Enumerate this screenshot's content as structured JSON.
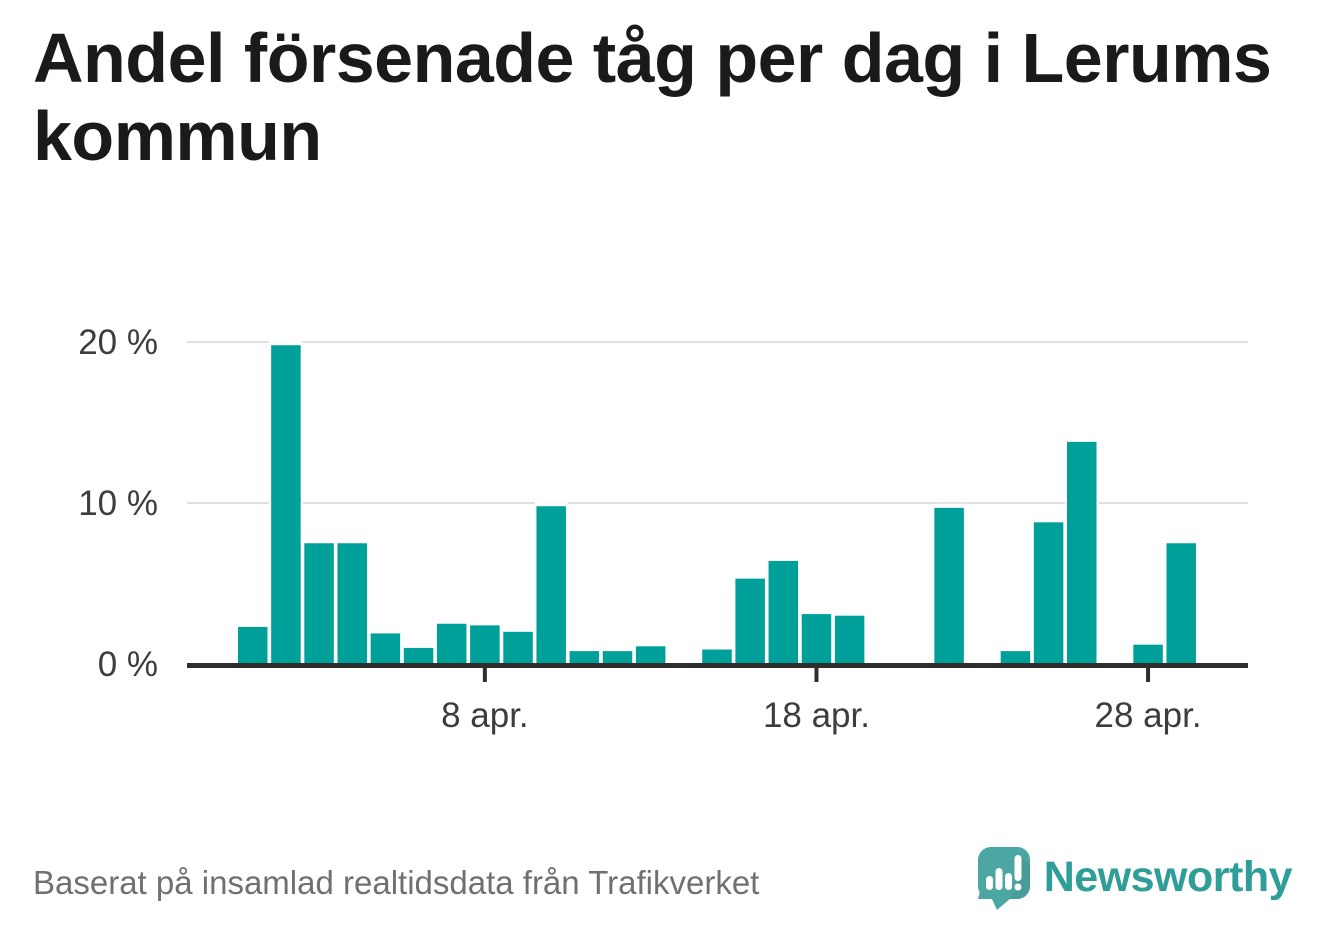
{
  "page": {
    "title": "Andel försenade tåg per dag i Lerums kommun"
  },
  "footer": {
    "source_text": "Baserat på insamlad realtidsdata från Trafikverket",
    "brand_name": "Newsworthy"
  },
  "colors": {
    "background": "#ffffff",
    "bar": "#00a09a",
    "grid": "#e0e0e0",
    "axis": "#2e2e2e",
    "axis_label": "#3d3d3d",
    "title": "#1a1a1a",
    "footer_text": "#707070",
    "brand_teal": "#2f9d98",
    "logo_bubble": "#4ca6a2",
    "logo_marks": "#ffffff"
  },
  "chart_data": {
    "type": "bar",
    "title": "Andel försenade tåg per dag i Lerums kommun",
    "xlabel": "",
    "ylabel": "",
    "unit": "%",
    "x": [
      1,
      2,
      3,
      4,
      5,
      6,
      7,
      8,
      9,
      10,
      11,
      12,
      13,
      14,
      15,
      16,
      17,
      18,
      19,
      20,
      21,
      22,
      23,
      24,
      25,
      26,
      27,
      28,
      29,
      30
    ],
    "x_month": "apr.",
    "values": [
      2.3,
      19.8,
      7.5,
      7.5,
      1.9,
      1.0,
      2.5,
      2.4,
      2.0,
      9.8,
      0.8,
      0.8,
      1.1,
      null,
      0.9,
      5.3,
      6.4,
      3.1,
      3.0,
      null,
      null,
      9.7,
      null,
      0.8,
      8.8,
      13.8,
      null,
      1.2,
      7.5,
      null
    ],
    "y_ticks": [
      {
        "value": 0,
        "label": "0 %"
      },
      {
        "value": 10,
        "label": "10 %"
      },
      {
        "value": 20,
        "label": "20 %"
      }
    ],
    "x_ticks": [
      {
        "day": 8,
        "label": "8 apr."
      },
      {
        "day": 18,
        "label": "18 apr."
      },
      {
        "day": 28,
        "label": "28 apr."
      }
    ],
    "ylim": [
      0,
      21
    ],
    "grid": "horizontal",
    "legend": "none",
    "bar_color": "#00a09a"
  }
}
